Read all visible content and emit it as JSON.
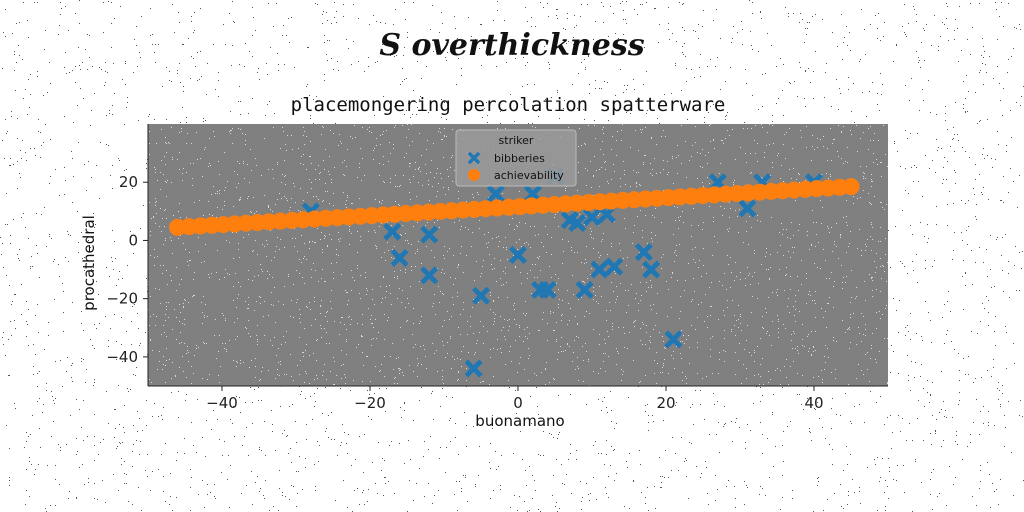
{
  "figure": {
    "suptitle": "S overthickness"
  },
  "chart_data": {
    "type": "scatter",
    "title": "placemongering percolation spatterware",
    "xlabel": "buonamano",
    "ylabel": "procathedral",
    "xlim": [
      -50,
      50
    ],
    "ylim": [
      -50,
      40
    ],
    "xticks": [
      -40,
      -20,
      0,
      20,
      40
    ],
    "yticks": [
      -40,
      -20,
      0,
      20
    ],
    "xtick_labels": [
      "−40",
      "−20",
      "0",
      "20",
      "40"
    ],
    "ytick_labels": [
      "−40",
      "−20",
      "0",
      "20"
    ],
    "grid": false,
    "plot_background": "#808080",
    "legend": {
      "title": "striker",
      "position": "upper-center"
    },
    "series": [
      {
        "name": "bibberies",
        "marker": "X",
        "color": "#1f77b4",
        "points": [
          [
            -28,
            10
          ],
          [
            -17,
            3
          ],
          [
            -16,
            -6
          ],
          [
            -12,
            2
          ],
          [
            -12,
            -12
          ],
          [
            -5,
            -19
          ],
          [
            -6,
            -44
          ],
          [
            -3,
            16
          ],
          [
            0,
            -5
          ],
          [
            2,
            16
          ],
          [
            3,
            -17
          ],
          [
            4,
            -17
          ],
          [
            5,
            22
          ],
          [
            7,
            7
          ],
          [
            8,
            6
          ],
          [
            9,
            -17
          ],
          [
            10,
            8
          ],
          [
            11,
            -10
          ],
          [
            12,
            9
          ],
          [
            13,
            -9
          ],
          [
            17,
            -4
          ],
          [
            18,
            -10
          ],
          [
            21,
            -34
          ],
          [
            27,
            20
          ],
          [
            31,
            11
          ],
          [
            33,
            20
          ],
          [
            40,
            20
          ]
        ]
      },
      {
        "name": "achievability",
        "marker": "o",
        "color": "#ff7f0e",
        "line_from": [
          -46,
          4.5
        ],
        "line_to": [
          45,
          18.5
        ],
        "n_points": 60
      }
    ]
  }
}
